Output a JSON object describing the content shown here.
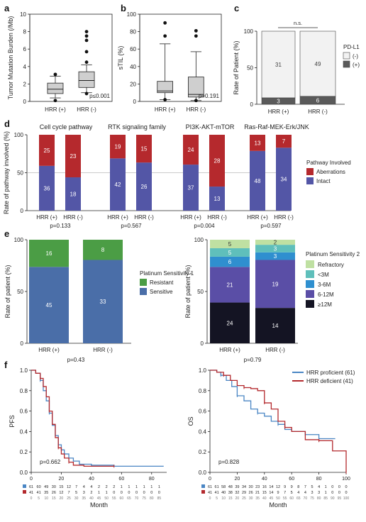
{
  "panels": {
    "a": {
      "letter": "a",
      "ylabel": "Tumor Mutation Burden (/Mb)",
      "yticks": [
        "0",
        "2",
        "4",
        "6",
        "8",
        "10"
      ],
      "xticks": [
        "HRR (+)",
        "HRR (-)"
      ],
      "pvalue": "p≤0.001"
    },
    "b": {
      "letter": "b",
      "ylabel": "sTIL (%)",
      "yticks": [
        "0",
        "20",
        "40",
        "60",
        "80",
        "100"
      ],
      "xticks": [
        "HRR (+)",
        "HRR (-)"
      ],
      "pvalue": "p=0.191"
    },
    "c": {
      "letter": "c",
      "ylabel": "Rate of Patient (%)",
      "yticks": [
        "0",
        "50",
        "100"
      ],
      "xticks": [
        "HRR (+)",
        "HRR (-)"
      ],
      "sig": "n.s.",
      "legend_title": "PD-L1",
      "legend": [
        "(-)",
        "(+)"
      ]
    },
    "d": {
      "letter": "d",
      "ylabel": "Rate of pathway involved (%)",
      "yticks": [
        "0",
        "50",
        "100"
      ],
      "legend_title": "Pathway Involved",
      "legend": [
        "Aberrations",
        "Intact"
      ]
    },
    "e": {
      "letter": "e",
      "left_ylabel": "Rate of patient (%)",
      "right_ylabel": "Rate of patient (%)",
      "yticks": [
        "0",
        "50",
        "100"
      ],
      "left_legend_title": "Platinum Sensitivity 1",
      "left_legend": [
        "Resistant",
        "Sensitive"
      ],
      "left_pvalue": "p=0.43",
      "right_legend_title": "Platinum Sensitivity 2",
      "right_legend": [
        "Refractory",
        "<3M",
        "3-6M",
        "6-12M",
        "≥12M"
      ],
      "right_pvalue": "p=0.79"
    },
    "f": {
      "letter": "f",
      "left_ylabel": "PFS",
      "right_ylabel": "OS",
      "xlabel": "Month",
      "yticks": [
        "0.0",
        "0.2",
        "0.4",
        "0.6",
        "0.8",
        "1.0"
      ],
      "left_xticks": [
        "0",
        "20",
        "40",
        "60",
        "80"
      ],
      "right_xticks": [
        "0",
        "20",
        "40",
        "60",
        "80",
        "100"
      ],
      "left_pvalue": "p=0.662",
      "right_pvalue": "p=0.828",
      "legend": [
        "HRR proficient (61)",
        "HRR deficient (41)"
      ],
      "left_risk_x": [
        "0",
        "5",
        "10",
        "15",
        "20",
        "25",
        "30",
        "35",
        "40",
        "45",
        "50",
        "55",
        "60",
        "65",
        "70",
        "75",
        "80",
        "85"
      ],
      "left_risk_blue": [
        "61",
        "60",
        "49",
        "30",
        "15",
        "12",
        "7",
        "4",
        "4",
        "2",
        "2",
        "2",
        "1",
        "1",
        "1",
        "1",
        "1",
        "1"
      ],
      "left_risk_red": [
        "41",
        "41",
        "35",
        "26",
        "12",
        "7",
        "5",
        "3",
        "2",
        "1",
        "1",
        "0",
        "0",
        "0",
        "0",
        "0",
        "0",
        "0"
      ],
      "right_risk_x": [
        "0",
        "5",
        "10",
        "15",
        "20",
        "25",
        "30",
        "35",
        "40",
        "45",
        "50",
        "55",
        "60",
        "65",
        "70",
        "75",
        "80",
        "85",
        "90",
        "95",
        "100"
      ],
      "right_risk_blue": [
        "61",
        "61",
        "58",
        "48",
        "39",
        "34",
        "30",
        "23",
        "16",
        "14",
        "12",
        "9",
        "9",
        "8",
        "7",
        "5",
        "4",
        "1",
        "0",
        "0",
        "0"
      ],
      "right_risk_red": [
        "41",
        "41",
        "40",
        "38",
        "32",
        "29",
        "26",
        "21",
        "15",
        "14",
        "9",
        "7",
        "5",
        "4",
        "4",
        "3",
        "3",
        "1",
        "0",
        "0",
        "0"
      ]
    }
  },
  "colors": {
    "red": "#b5292d",
    "blue": "#5356a6",
    "green": "#4b9d45",
    "steel": "#4a6ea8",
    "box": "#cfcfcf",
    "light": "#f2f2f2",
    "dark": "#5a5a5a",
    "km_blue": "#4a86c4",
    "km_red": "#b3292d"
  },
  "chart_data": [
    {
      "type": "box",
      "panel": "a",
      "categories": [
        "HRR (+)",
        "HRR (-)"
      ],
      "ylim": [
        0,
        10
      ],
      "ylabel": "Tumor Mutation Burden (/Mb)",
      "boxes": [
        {
          "whislo": 0.4,
          "q1": 0.9,
          "med": 1.4,
          "q3": 2.1,
          "whishi": 2.9,
          "fliers": [
            0.1,
            3.1
          ]
        },
        {
          "whislo": 1.0,
          "q1": 1.6,
          "med": 2.4,
          "q3": 3.4,
          "whishi": 4.2,
          "fliers": [
            0.9,
            4.5,
            5.7,
            7.0,
            7.5,
            8.0
          ]
        }
      ]
    },
    {
      "type": "box",
      "panel": "b",
      "categories": [
        "HRR (+)",
        "HRR (-)"
      ],
      "ylim": [
        0,
        100
      ],
      "ylabel": "sTIL (%)",
      "boxes": [
        {
          "whislo": 2,
          "q1": 10,
          "med": 12,
          "q3": 23,
          "whishi": 66,
          "fliers": [
            2,
            75,
            90
          ]
        },
        {
          "whislo": 1,
          "q1": 5,
          "med": 8,
          "q3": 28,
          "whishi": 57,
          "fliers": [
            1,
            75,
            81
          ]
        }
      ]
    },
    {
      "type": "bar",
      "panel": "c",
      "stacked": "percent",
      "categories": [
        "HRR (+)",
        "HRR (-)"
      ],
      "series": [
        {
          "name": "(+)",
          "values": [
            3,
            6
          ]
        },
        {
          "name": "(-)",
          "values": [
            31,
            49
          ]
        }
      ]
    },
    {
      "type": "bar",
      "panel": "d",
      "stacked": "percent",
      "groups": [
        {
          "title": "Cell cycle pathway",
          "pvalue": "p=0.133",
          "categories": [
            "HRR (+)",
            "HRR (-)"
          ],
          "intact": [
            36,
            18
          ],
          "aberrations": [
            25,
            23
          ]
        },
        {
          "title": "RTK signaling family",
          "pvalue": "p=0.567",
          "categories": [
            "HRR (+)",
            "HRR (-)"
          ],
          "intact": [
            42,
            26
          ],
          "aberrations": [
            19,
            15
          ]
        },
        {
          "title": "PI3K-AKT-mTOR",
          "pvalue": "p=0.004",
          "categories": [
            "HRR (+)",
            "HRR (-)"
          ],
          "intact": [
            37,
            13
          ],
          "aberrations": [
            24,
            28
          ]
        },
        {
          "title": "Ras-Raf-MEK-Erk/JNK",
          "pvalue": "p=0.597",
          "categories": [
            "HRR (+)",
            "HRR (-)"
          ],
          "intact": [
            48,
            34
          ],
          "aberrations": [
            13,
            7
          ]
        }
      ]
    },
    {
      "type": "bar",
      "panel": "e-left",
      "stacked": "percent",
      "categories": [
        "HRR (+)",
        "HRR (-)"
      ],
      "series": [
        {
          "name": "Sensitive",
          "values": [
            45,
            33
          ]
        },
        {
          "name": "Resistant",
          "values": [
            16,
            8
          ]
        }
      ]
    },
    {
      "type": "bar",
      "panel": "e-right",
      "stacked": "percent",
      "categories": [
        "HRR (+)",
        "HRR (-)"
      ],
      "series": [
        {
          "name": "≥12M",
          "values": [
            24,
            14
          ]
        },
        {
          "name": "6-12M",
          "values": [
            21,
            19
          ]
        },
        {
          "name": "3-6M",
          "values": [
            6,
            3
          ]
        },
        {
          "name": "<3M",
          "values": [
            5,
            3
          ]
        },
        {
          "name": "Refractory",
          "values": [
            5,
            2
          ]
        }
      ]
    },
    {
      "type": "line",
      "panel": "f-left",
      "xlabel": "Month",
      "ylabel": "PFS",
      "xlim": [
        0,
        90
      ],
      "ylim": [
        0,
        1
      ],
      "series": [
        {
          "name": "HRR proficient (61)",
          "x": [
            0,
            3,
            6,
            8,
            10,
            12,
            14,
            16,
            18,
            20,
            22,
            25,
            28,
            32,
            40,
            55,
            88
          ],
          "y": [
            1.0,
            0.97,
            0.9,
            0.8,
            0.7,
            0.58,
            0.46,
            0.36,
            0.27,
            0.22,
            0.18,
            0.14,
            0.11,
            0.08,
            0.07,
            0.06,
            0.06
          ]
        },
        {
          "name": "HRR deficient (41)",
          "x": [
            0,
            3,
            6,
            8,
            10,
            12,
            14,
            16,
            18,
            20,
            22,
            25,
            28,
            35,
            55
          ],
          "y": [
            1.0,
            0.97,
            0.92,
            0.84,
            0.74,
            0.6,
            0.47,
            0.34,
            0.24,
            0.18,
            0.14,
            0.1,
            0.07,
            0.06,
            0.06
          ]
        }
      ]
    },
    {
      "type": "line",
      "panel": "f-right",
      "xlabel": "Month",
      "ylabel": "OS",
      "xlim": [
        0,
        100
      ],
      "ylim": [
        0,
        1
      ],
      "series": [
        {
          "name": "HRR proficient (61)",
          "x": [
            0,
            5,
            8,
            12,
            16,
            20,
            25,
            30,
            35,
            40,
            45,
            50,
            55,
            60,
            70,
            80,
            92
          ],
          "y": [
            1.0,
            0.98,
            0.95,
            0.9,
            0.84,
            0.75,
            0.7,
            0.62,
            0.58,
            0.55,
            0.5,
            0.47,
            0.42,
            0.4,
            0.37,
            0.33,
            0.33
          ]
        },
        {
          "name": "HRR deficient (41)",
          "x": [
            0,
            5,
            10,
            15,
            20,
            25,
            30,
            35,
            40,
            45,
            50,
            55,
            60,
            70,
            80,
            90,
            95,
            100
          ],
          "y": [
            1.0,
            0.98,
            0.95,
            0.9,
            0.85,
            0.83,
            0.82,
            0.8,
            0.68,
            0.62,
            0.5,
            0.44,
            0.4,
            0.32,
            0.31,
            0.21,
            0.21,
            0.0
          ]
        }
      ]
    }
  ]
}
